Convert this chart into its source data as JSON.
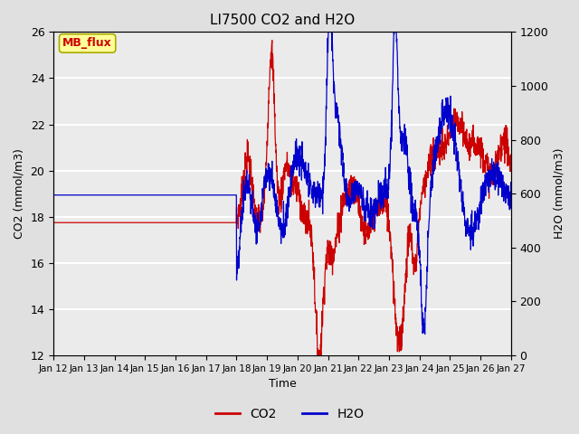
{
  "title": "LI7500 CO2 and H2O",
  "xlabel": "Time",
  "ylabel_left": "CO2 (mmol/m3)",
  "ylabel_right": "H2O (mmol/m3)",
  "xlim": [
    0,
    15
  ],
  "ylim_left": [
    12,
    26
  ],
  "ylim_right": [
    0,
    1200
  ],
  "x_tick_labels": [
    "Jan 12",
    "Jan 13",
    "Jan 14",
    "Jan 15",
    "Jan 16",
    "Jan 17",
    "Jan 18",
    "Jan 19",
    "Jan 20",
    "Jan 21",
    "Jan 22",
    "Jan 23",
    "Jan 24",
    "Jan 25",
    "Jan 26",
    "Jan 27"
  ],
  "yticks_left": [
    12,
    14,
    16,
    18,
    20,
    22,
    24,
    26
  ],
  "yticks_right": [
    0,
    200,
    400,
    600,
    800,
    1000,
    1200
  ],
  "co2_color": "#cc0000",
  "h2o_color": "#0000cc",
  "bg_color": "#e0e0e0",
  "plot_bg_color": "#ebebeb",
  "annotation_text": "MB_flux",
  "annotation_facecolor": "#ffff99",
  "annotation_edgecolor": "#aaaa00",
  "annotation_textcolor": "#cc0000",
  "co2_flat": 17.75,
  "h2o_flat": 595.0,
  "transition_day": 6.0,
  "n_points": 2000
}
